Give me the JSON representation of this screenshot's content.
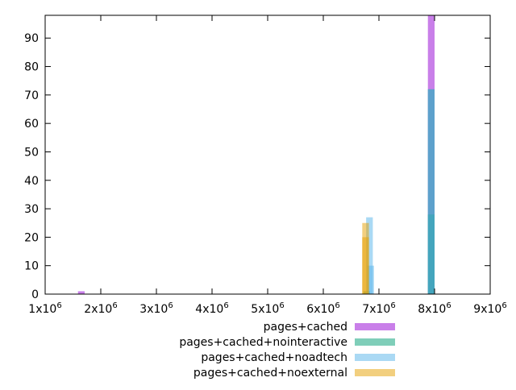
{
  "chart_data": {
    "type": "bar",
    "title": "",
    "xlabel": "",
    "ylabel": "",
    "xlim": [
      1000000,
      9000000
    ],
    "ylim": [
      0,
      98
    ],
    "grid": false,
    "legend_position": "bottom-center",
    "bin_width": 120000,
    "x_ticks": [
      {
        "value": 1000000,
        "base": "1x10",
        "exp": "6"
      },
      {
        "value": 2000000,
        "base": "2x10",
        "exp": "6"
      },
      {
        "value": 3000000,
        "base": "3x10",
        "exp": "6"
      },
      {
        "value": 4000000,
        "base": "4x10",
        "exp": "6"
      },
      {
        "value": 5000000,
        "base": "5x10",
        "exp": "6"
      },
      {
        "value": 6000000,
        "base": "6x10",
        "exp": "6"
      },
      {
        "value": 7000000,
        "base": "7x10",
        "exp": "6"
      },
      {
        "value": 8000000,
        "base": "8x10",
        "exp": "6"
      },
      {
        "value": 9000000,
        "base": "9x10",
        "exp": "6"
      }
    ],
    "y_ticks": [
      0,
      10,
      20,
      30,
      40,
      50,
      60,
      70,
      80,
      90
    ],
    "series": [
      {
        "name": "pages+cached",
        "color": "#9400d3",
        "points": [
          {
            "x": 1650000,
            "y": 1
          },
          {
            "x": 7940000,
            "y": 98
          }
        ]
      },
      {
        "name": "pages+cached+nointeractive",
        "color": "#009e73",
        "points": [
          {
            "x": 6780000,
            "y": 1
          },
          {
            "x": 7940000,
            "y": 72
          },
          {
            "x": 7940000,
            "y": 28
          }
        ]
      },
      {
        "name": "pages+cached+noadtech",
        "color": "#56b4e9",
        "points": [
          {
            "x": 6830000,
            "y": 27
          },
          {
            "x": 6850000,
            "y": 10
          },
          {
            "x": 7940000,
            "y": 72
          }
        ]
      },
      {
        "name": "pages+cached+noexternal",
        "color": "#e69f00",
        "points": [
          {
            "x": 6760000,
            "y": 25
          },
          {
            "x": 6760000,
            "y": 20
          }
        ]
      }
    ]
  }
}
